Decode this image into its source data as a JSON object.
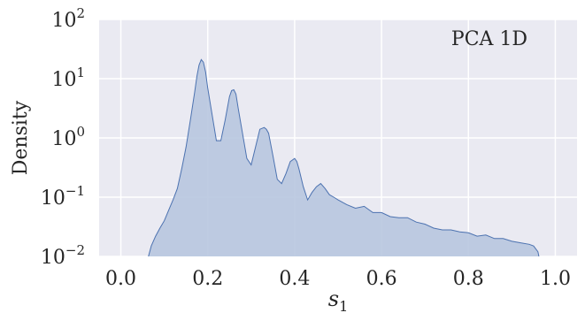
{
  "chart_data": {
    "type": "area",
    "annotation": "PCA 1D",
    "xlabel": "s",
    "xlabel_subscript": "1",
    "ylabel": "Density",
    "xlim": [
      -0.05,
      1.05
    ],
    "ylim": [
      0.01,
      100
    ],
    "yscale": "log",
    "xticks": [
      {
        "value": 0.0,
        "label": "0.0"
      },
      {
        "value": 0.2,
        "label": "0.2"
      },
      {
        "value": 0.4,
        "label": "0.4"
      },
      {
        "value": 0.6,
        "label": "0.6"
      },
      {
        "value": 0.8,
        "label": "0.8"
      },
      {
        "value": 1.0,
        "label": "1.0"
      }
    ],
    "yticks": [
      {
        "value": 0.01,
        "base": "10",
        "exp": "−2"
      },
      {
        "value": 0.1,
        "base": "10",
        "exp": "−1"
      },
      {
        "value": 1,
        "base": "10",
        "exp": "0"
      },
      {
        "value": 10,
        "base": "10",
        "exp": "1"
      },
      {
        "value": 100,
        "base": "10",
        "exp": "2"
      }
    ],
    "grid": true,
    "colors": {
      "background": "#eaeaf2",
      "grid": "#ffffff",
      "line": "#4c72b0",
      "fill": "#b8c6df"
    },
    "series": [
      {
        "x": [
          0.06,
          0.07,
          0.08,
          0.09,
          0.1,
          0.11,
          0.12,
          0.13,
          0.14,
          0.15,
          0.16,
          0.17,
          0.175,
          0.18,
          0.185,
          0.19,
          0.195,
          0.2,
          0.21,
          0.22,
          0.23,
          0.24,
          0.25,
          0.255,
          0.26,
          0.265,
          0.27,
          0.28,
          0.29,
          0.3,
          0.31,
          0.32,
          0.33,
          0.335,
          0.34,
          0.35,
          0.36,
          0.37,
          0.38,
          0.39,
          0.4,
          0.405,
          0.41,
          0.42,
          0.43,
          0.44,
          0.45,
          0.46,
          0.47,
          0.48,
          0.49,
          0.5,
          0.52,
          0.54,
          0.56,
          0.58,
          0.6,
          0.62,
          0.64,
          0.66,
          0.68,
          0.7,
          0.72,
          0.74,
          0.76,
          0.78,
          0.8,
          0.82,
          0.84,
          0.86,
          0.88,
          0.9,
          0.92,
          0.94,
          0.95,
          0.96,
          0.965
        ],
        "y": [
          0.008,
          0.015,
          0.022,
          0.03,
          0.04,
          0.06,
          0.09,
          0.14,
          0.3,
          0.7,
          2.0,
          6.0,
          11,
          17,
          21,
          19,
          13,
          7,
          2.5,
          0.9,
          0.9,
          2.0,
          5.0,
          6.3,
          6.5,
          5.5,
          3.2,
          1.2,
          0.45,
          0.35,
          0.7,
          1.4,
          1.5,
          1.4,
          1.2,
          0.5,
          0.2,
          0.17,
          0.25,
          0.4,
          0.45,
          0.4,
          0.3,
          0.15,
          0.09,
          0.12,
          0.15,
          0.17,
          0.14,
          0.11,
          0.1,
          0.09,
          0.075,
          0.065,
          0.07,
          0.055,
          0.055,
          0.047,
          0.045,
          0.045,
          0.038,
          0.035,
          0.03,
          0.028,
          0.028,
          0.026,
          0.025,
          0.022,
          0.023,
          0.02,
          0.02,
          0.018,
          0.017,
          0.016,
          0.015,
          0.012,
          0.008
        ]
      }
    ]
  }
}
